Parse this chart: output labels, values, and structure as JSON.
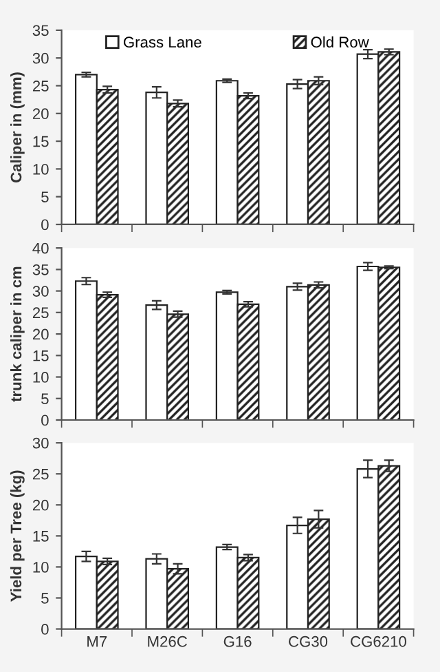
{
  "chart_data": [
    {
      "type": "bar",
      "ylabel": "Caliper in (mm)",
      "categories": [
        null,
        null,
        null,
        null,
        null
      ],
      "ylim": [
        0,
        35
      ],
      "yticks": [
        0,
        5,
        10,
        15,
        20,
        25,
        30,
        35
      ],
      "legend": "top",
      "grid": false,
      "series": [
        {
          "name": "Grass Lane",
          "color": "#ffffff",
          "values": [
            27.0,
            23.8,
            25.9,
            25.3,
            30.7
          ],
          "errors": [
            0.4,
            1.0,
            0.3,
            0.8,
            0.8
          ]
        },
        {
          "name": "Old Row",
          "color": "#222222",
          "values": [
            24.3,
            21.8,
            23.2,
            25.9,
            31.1
          ],
          "errors": [
            0.6,
            0.6,
            0.5,
            0.7,
            0.5
          ]
        }
      ]
    },
    {
      "type": "bar",
      "ylabel": "trunk caliper in cm",
      "categories": [
        null,
        null,
        null,
        null,
        null
      ],
      "ylim": [
        0,
        40
      ],
      "yticks": [
        0,
        5,
        10,
        15,
        20,
        25,
        30,
        35,
        40
      ],
      "grid": false,
      "series": [
        {
          "color": "#ffffff",
          "values": [
            32.3,
            26.7,
            29.7,
            31.0,
            35.7
          ],
          "errors": [
            0.8,
            1.0,
            0.4,
            0.8,
            0.9
          ]
        },
        {
          "color": "#222222",
          "values": [
            29.1,
            24.6,
            26.9,
            31.4,
            35.5
          ],
          "errors": [
            0.6,
            0.7,
            0.6,
            0.7,
            0.3
          ]
        }
      ]
    },
    {
      "type": "bar",
      "ylabel": "Yield per Tree (kg)",
      "categories": [
        "M7",
        "M26C",
        "G16",
        "CG30",
        "CG6210"
      ],
      "ylim": [
        0,
        30
      ],
      "yticks": [
        0,
        5,
        10,
        15,
        20,
        25,
        30
      ],
      "grid": false,
      "series": [
        {
          "color": "#ffffff",
          "values": [
            11.7,
            11.3,
            13.2,
            16.7,
            25.8
          ],
          "errors": [
            0.8,
            0.8,
            0.4,
            1.3,
            1.4
          ]
        },
        {
          "color": "#222222",
          "values": [
            10.9,
            9.7,
            11.5,
            17.7,
            26.3
          ],
          "errors": [
            0.5,
            0.8,
            0.5,
            1.4,
            0.9
          ]
        }
      ]
    }
  ]
}
